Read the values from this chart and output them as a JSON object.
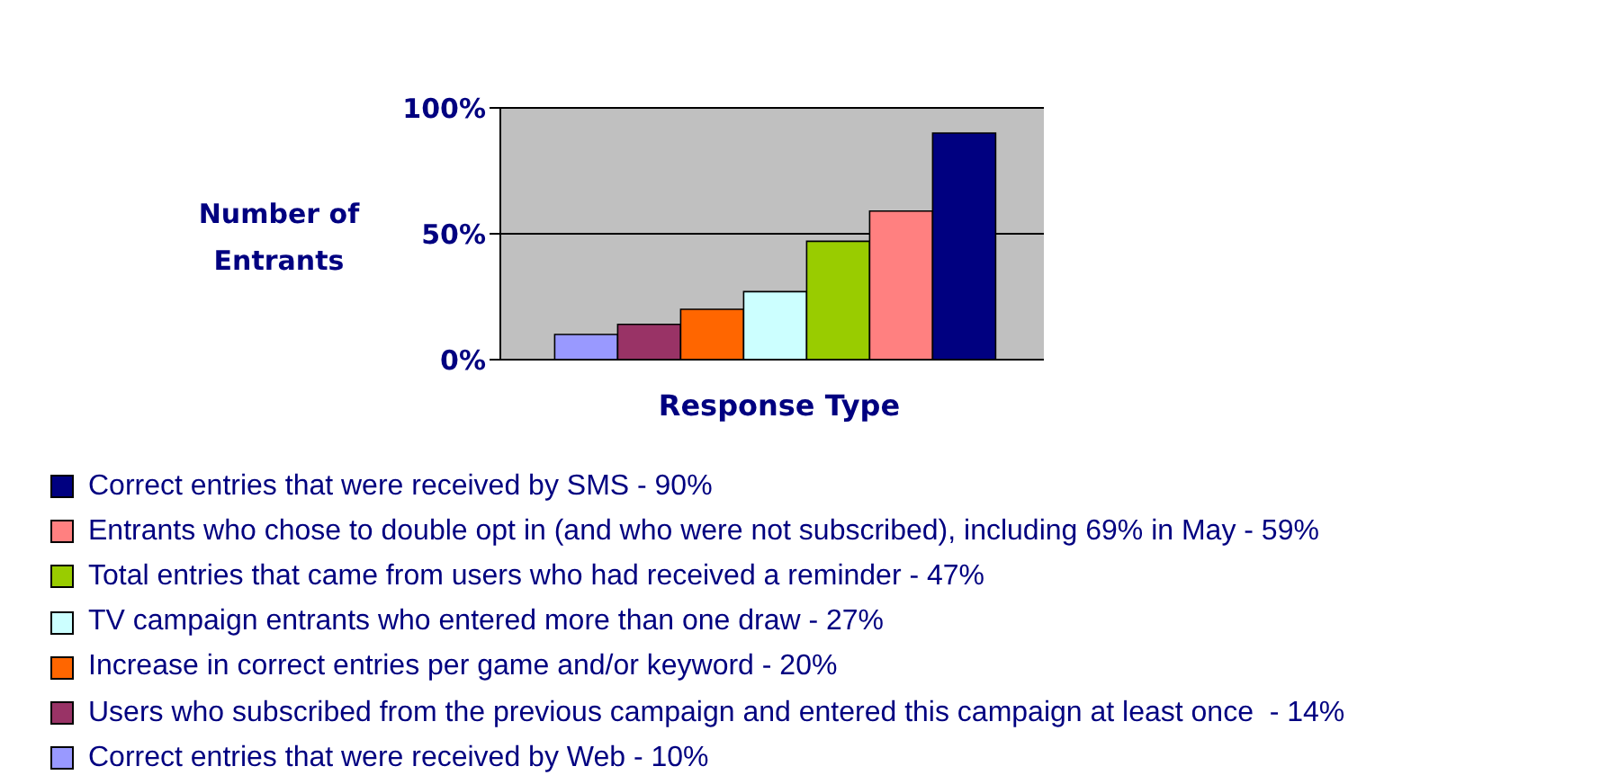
{
  "chart_data": {
    "type": "bar",
    "xlabel": "Response Type",
    "ylabel": "Number of Entrants",
    "categories": [
      null
    ],
    "series": [
      {
        "name": "Correct entries that were received by Web - 10%",
        "color": "#9999ff",
        "values": [
          10
        ]
      },
      {
        "name": "Users who subscribed from the previous campaign and entered this campaign at least once  - 14%",
        "color": "#993366",
        "values": [
          14
        ]
      },
      {
        "name": "Increase in correct entries per game and/or keyword - 20%",
        "color": "#ff6600",
        "values": [
          20
        ]
      },
      {
        "name": "TV campaign entrants who entered more than one draw - 27%",
        "color": "#ccffff",
        "values": [
          27
        ]
      },
      {
        "name": "Total entries that came from users who had received a reminder - 47%",
        "color": "#99cc00",
        "values": [
          47
        ]
      },
      {
        "name": "Entrants who chose to double opt in (and who were not subscribed), including 69% in May - 59%",
        "color": "#ff8080",
        "values": [
          59
        ]
      },
      {
        "name": "Correct entries that were received by SMS - 90%",
        "color": "#000080",
        "values": [
          90
        ]
      }
    ],
    "ylim": [
      0,
      100
    ],
    "yticks": [
      {
        "value": 0,
        "label": "0%"
      },
      {
        "value": 50,
        "label": "50%"
      },
      {
        "value": 100,
        "label": "100%"
      }
    ],
    "grid": "y",
    "legend": "bottom"
  }
}
